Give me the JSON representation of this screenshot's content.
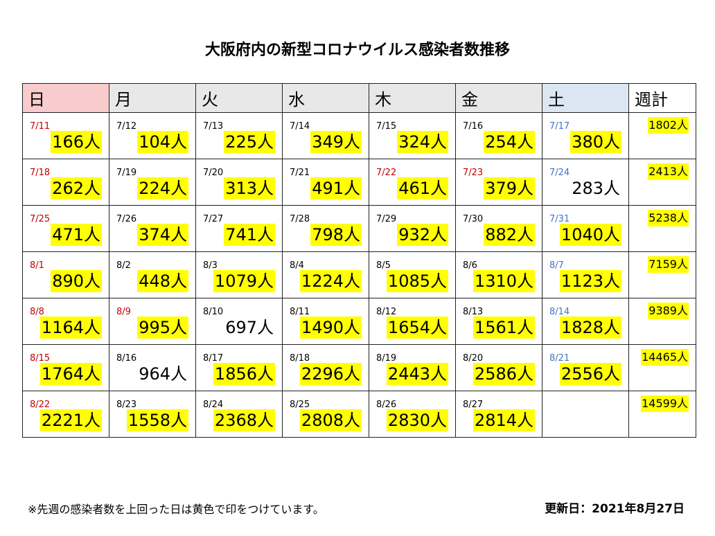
{
  "title": "大阪府内の新型コロナウイルス感染者数推移",
  "headers": [
    "日",
    "月",
    "火",
    "水",
    "木",
    "金",
    "土",
    "週計"
  ],
  "weeks": [
    {
      "cells": [
        {
          "date": "7/11",
          "count": "166人",
          "hl": true,
          "dc": "red"
        },
        {
          "date": "7/12",
          "count": "104人",
          "hl": true,
          "dc": ""
        },
        {
          "date": "7/13",
          "count": "225人",
          "hl": true,
          "dc": ""
        },
        {
          "date": "7/14",
          "count": "349人",
          "hl": true,
          "dc": ""
        },
        {
          "date": "7/15",
          "count": "324人",
          "hl": true,
          "dc": ""
        },
        {
          "date": "7/16",
          "count": "254人",
          "hl": true,
          "dc": ""
        },
        {
          "date": "7/17",
          "count": "380人",
          "hl": true,
          "dc": "blue"
        }
      ],
      "total": "1802人"
    },
    {
      "cells": [
        {
          "date": "7/18",
          "count": "262人",
          "hl": true,
          "dc": "red"
        },
        {
          "date": "7/19",
          "count": "224人",
          "hl": true,
          "dc": ""
        },
        {
          "date": "7/20",
          "count": "313人",
          "hl": true,
          "dc": ""
        },
        {
          "date": "7/21",
          "count": "491人",
          "hl": true,
          "dc": ""
        },
        {
          "date": "7/22",
          "count": "461人",
          "hl": true,
          "dc": "red"
        },
        {
          "date": "7/23",
          "count": "379人",
          "hl": true,
          "dc": "red"
        },
        {
          "date": "7/24",
          "count": "283人",
          "hl": false,
          "dc": "blue"
        }
      ],
      "total": "2413人"
    },
    {
      "cells": [
        {
          "date": "7/25",
          "count": "471人",
          "hl": true,
          "dc": "red"
        },
        {
          "date": "7/26",
          "count": "374人",
          "hl": true,
          "dc": ""
        },
        {
          "date": "7/27",
          "count": "741人",
          "hl": true,
          "dc": ""
        },
        {
          "date": "7/28",
          "count": "798人",
          "hl": true,
          "dc": ""
        },
        {
          "date": "7/29",
          "count": "932人",
          "hl": true,
          "dc": ""
        },
        {
          "date": "7/30",
          "count": "882人",
          "hl": true,
          "dc": ""
        },
        {
          "date": "7/31",
          "count": "1040人",
          "hl": true,
          "dc": "blue"
        }
      ],
      "total": "5238人"
    },
    {
      "cells": [
        {
          "date": "8/1",
          "count": "890人",
          "hl": true,
          "dc": "red"
        },
        {
          "date": "8/2",
          "count": "448人",
          "hl": true,
          "dc": ""
        },
        {
          "date": "8/3",
          "count": "1079人",
          "hl": true,
          "dc": ""
        },
        {
          "date": "8/4",
          "count": "1224人",
          "hl": true,
          "dc": ""
        },
        {
          "date": "8/5",
          "count": "1085人",
          "hl": true,
          "dc": ""
        },
        {
          "date": "8/6",
          "count": "1310人",
          "hl": true,
          "dc": ""
        },
        {
          "date": "8/7",
          "count": "1123人",
          "hl": true,
          "dc": "blue"
        }
      ],
      "total": "7159人"
    },
    {
      "cells": [
        {
          "date": "8/8",
          "count": "1164人",
          "hl": true,
          "dc": "red"
        },
        {
          "date": "8/9",
          "count": "995人",
          "hl": true,
          "dc": "red"
        },
        {
          "date": "8/10",
          "count": "697人",
          "hl": false,
          "dc": ""
        },
        {
          "date": "8/11",
          "count": "1490人",
          "hl": true,
          "dc": ""
        },
        {
          "date": "8/12",
          "count": "1654人",
          "hl": true,
          "dc": ""
        },
        {
          "date": "8/13",
          "count": "1561人",
          "hl": true,
          "dc": ""
        },
        {
          "date": "8/14",
          "count": "1828人",
          "hl": true,
          "dc": "blue"
        }
      ],
      "total": "9389人"
    },
    {
      "cells": [
        {
          "date": "8/15",
          "count": "1764人",
          "hl": true,
          "dc": "red"
        },
        {
          "date": "8/16",
          "count": "964人",
          "hl": false,
          "dc": ""
        },
        {
          "date": "8/17",
          "count": "1856人",
          "hl": true,
          "dc": ""
        },
        {
          "date": "8/18",
          "count": "2296人",
          "hl": true,
          "dc": ""
        },
        {
          "date": "8/19",
          "count": "2443人",
          "hl": true,
          "dc": ""
        },
        {
          "date": "8/20",
          "count": "2586人",
          "hl": true,
          "dc": ""
        },
        {
          "date": "8/21",
          "count": "2556人",
          "hl": true,
          "dc": "blue"
        }
      ],
      "total": "14465人"
    },
    {
      "cells": [
        {
          "date": "8/22",
          "count": "2221人",
          "hl": true,
          "dc": "red"
        },
        {
          "date": "8/23",
          "count": "1558人",
          "hl": true,
          "dc": ""
        },
        {
          "date": "8/24",
          "count": "2368人",
          "hl": true,
          "dc": ""
        },
        {
          "date": "8/25",
          "count": "2808人",
          "hl": true,
          "dc": ""
        },
        {
          "date": "8/26",
          "count": "2830人",
          "hl": true,
          "dc": ""
        },
        {
          "date": "8/27",
          "count": "2814人",
          "hl": true,
          "dc": ""
        },
        {
          "date": "",
          "count": "",
          "hl": false,
          "dc": ""
        }
      ],
      "total": "14599人"
    }
  ],
  "colors": {
    "highlight": "#ffff00",
    "holiday_date": "#c00000",
    "saturday_date": "#4472c4",
    "sunday_header": "#f8cbcd",
    "saturday_header": "#dce6f3",
    "weekday_header": "#e8e8e8"
  },
  "footnote": "※先週の感染者数を上回った日は黄色で印をつけています。",
  "updated": "更新日：2021年8月27日"
}
